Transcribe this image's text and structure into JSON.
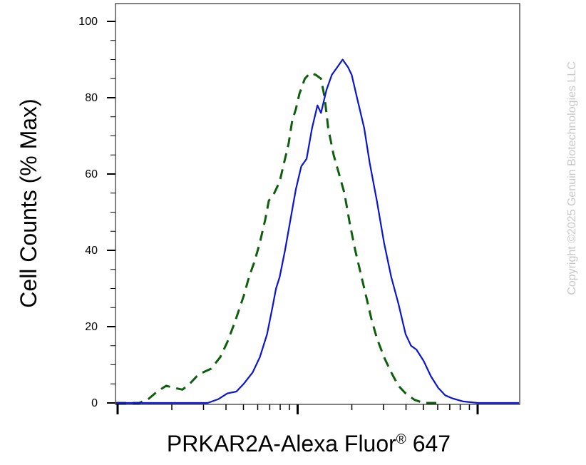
{
  "chart_data": {
    "type": "line",
    "xlabel": "PRKAR2A-Alexa Fluor",
    "xlabel_mark": "®",
    "xlabel_suffix": " 647",
    "ylabel": "Cell Counts (% Max)",
    "x_scale": "log",
    "ylim": [
      0,
      100
    ],
    "y_ticks": [
      "0",
      "20",
      "40",
      "60",
      "80",
      "100"
    ],
    "grid": false,
    "watermark": "Copyright ©2025 Genuin Biotechnologies LLC",
    "series": [
      {
        "color": "#0d5f0d",
        "dash": "dashed",
        "points": [
          [
            -0.1,
            0
          ],
          [
            0.12,
            0
          ],
          [
            0.17,
            1
          ],
          [
            0.22,
            3
          ],
          [
            0.27,
            4.5
          ],
          [
            0.31,
            4
          ],
          [
            0.36,
            3.5
          ],
          [
            0.4,
            5
          ],
          [
            0.45,
            7.5
          ],
          [
            0.52,
            9
          ],
          [
            0.57,
            12
          ],
          [
            0.61,
            16
          ],
          [
            0.65,
            21
          ],
          [
            0.7,
            28
          ],
          [
            0.73,
            33
          ],
          [
            0.76,
            37
          ],
          [
            0.79,
            42
          ],
          [
            0.82,
            48
          ],
          [
            0.84,
            53
          ],
          [
            0.87,
            55
          ],
          [
            0.9,
            58
          ],
          [
            0.92,
            62
          ],
          [
            0.95,
            68
          ],
          [
            0.97,
            74
          ],
          [
            0.99,
            77
          ],
          [
            1.01,
            81
          ],
          [
            1.04,
            85
          ],
          [
            1.07,
            86.5
          ],
          [
            1.1,
            86
          ],
          [
            1.13,
            85
          ],
          [
            1.15,
            80
          ],
          [
            1.17,
            72
          ],
          [
            1.2,
            65
          ],
          [
            1.23,
            60
          ],
          [
            1.26,
            55
          ],
          [
            1.29,
            47
          ],
          [
            1.32,
            40
          ],
          [
            1.35,
            34
          ],
          [
            1.38,
            28
          ],
          [
            1.41,
            22
          ],
          [
            1.44,
            17
          ],
          [
            1.48,
            12
          ],
          [
            1.52,
            8
          ],
          [
            1.56,
            4.5
          ],
          [
            1.6,
            2.5
          ],
          [
            1.65,
            0.8
          ],
          [
            1.7,
            0
          ],
          [
            1.8,
            0
          ]
        ]
      },
      {
        "color": "#0a14d2",
        "dash": "solid",
        "points": [
          [
            -0.1,
            0
          ],
          [
            0.4,
            0
          ],
          [
            0.5,
            0
          ],
          [
            0.56,
            1
          ],
          [
            0.61,
            2.5
          ],
          [
            0.66,
            3
          ],
          [
            0.7,
            5
          ],
          [
            0.75,
            8
          ],
          [
            0.79,
            12
          ],
          [
            0.83,
            18
          ],
          [
            0.86,
            25
          ],
          [
            0.88,
            30
          ],
          [
            0.9,
            33
          ],
          [
            0.93,
            40
          ],
          [
            0.96,
            48
          ],
          [
            0.99,
            56
          ],
          [
            1.02,
            62
          ],
          [
            1.05,
            64
          ],
          [
            1.08,
            72
          ],
          [
            1.11,
            78
          ],
          [
            1.13,
            76
          ],
          [
            1.16,
            82
          ],
          [
            1.19,
            86
          ],
          [
            1.22,
            88
          ],
          [
            1.25,
            90
          ],
          [
            1.28,
            88
          ],
          [
            1.3,
            86
          ],
          [
            1.33,
            80
          ],
          [
            1.37,
            72
          ],
          [
            1.4,
            63
          ],
          [
            1.44,
            53
          ],
          [
            1.48,
            42
          ],
          [
            1.52,
            33
          ],
          [
            1.56,
            26
          ],
          [
            1.6,
            18
          ],
          [
            1.63,
            15
          ],
          [
            1.66,
            14
          ],
          [
            1.7,
            11
          ],
          [
            1.74,
            7
          ],
          [
            1.78,
            4
          ],
          [
            1.82,
            2
          ],
          [
            1.86,
            1.2
          ],
          [
            1.92,
            0.4
          ],
          [
            2.0,
            0
          ],
          [
            2.3,
            0
          ]
        ]
      }
    ]
  }
}
